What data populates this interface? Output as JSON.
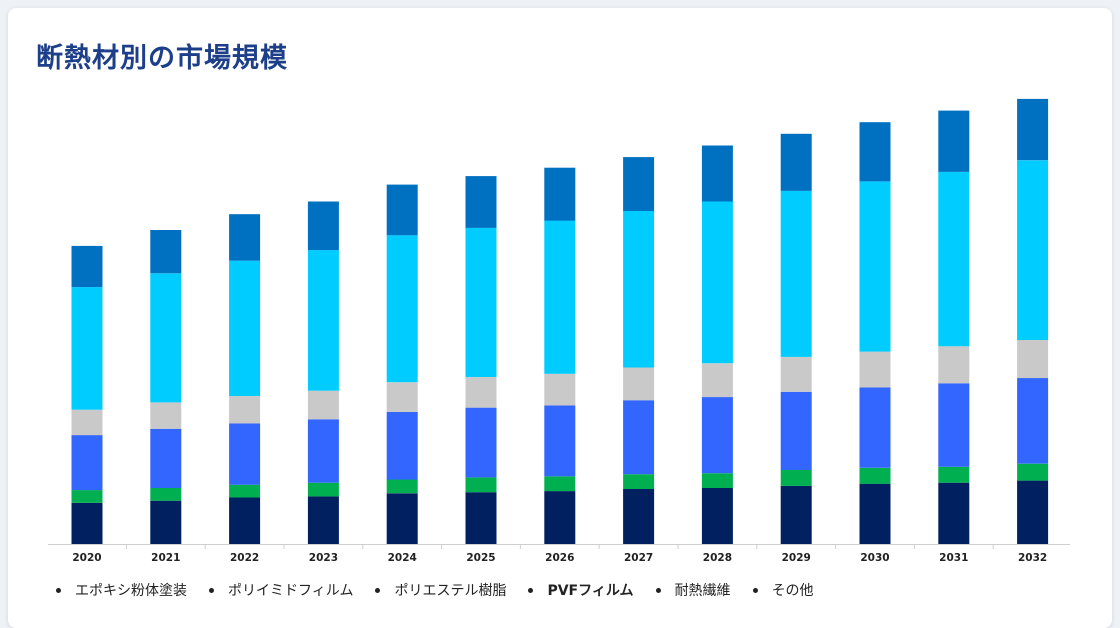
{
  "title": "断熱材別の市場規模",
  "chart_data": {
    "type": "bar",
    "stacked": true,
    "title": "断熱材別の市場規模",
    "categories": [
      "2020",
      "2021",
      "2022",
      "2023",
      "2024",
      "2025",
      "2026",
      "2027",
      "2028",
      "2029",
      "2030",
      "2031",
      "2032"
    ],
    "series": [
      {
        "name": "エポキシ粉体塗装",
        "color": "#002060",
        "values": [
          39,
          41,
          44,
          45,
          48,
          49,
          50,
          52,
          53,
          55,
          57,
          58,
          60
        ]
      },
      {
        "name": "ポリイミドフィルム",
        "color": "#00b050",
        "values": [
          12,
          12,
          12,
          13,
          13,
          14,
          14,
          14,
          14,
          15,
          15,
          15,
          16
        ]
      },
      {
        "name": "ポリエステル樹脂",
        "color": "#3366ff",
        "values": [
          52,
          56,
          58,
          60,
          64,
          66,
          67,
          70,
          72,
          74,
          76,
          79,
          81
        ]
      },
      {
        "name": "PVFフィルム",
        "color": "#c9c9c9",
        "values": [
          24,
          25,
          26,
          27,
          28,
          29,
          30,
          31,
          32,
          33,
          34,
          35,
          36
        ]
      },
      {
        "name": "耐熱繊維",
        "color": "#00ccff",
        "values": [
          116,
          122,
          128,
          133,
          139,
          141,
          145,
          148,
          153,
          157,
          161,
          165,
          170
        ]
      },
      {
        "name": "その他",
        "color": "#0070c0",
        "values": [
          39,
          41,
          44,
          46,
          48,
          49,
          50,
          51,
          53,
          54,
          56,
          58,
          58
        ]
      }
    ],
    "legend_position": "bottom",
    "grid": false,
    "ylim": [
      0,
      420
    ]
  }
}
